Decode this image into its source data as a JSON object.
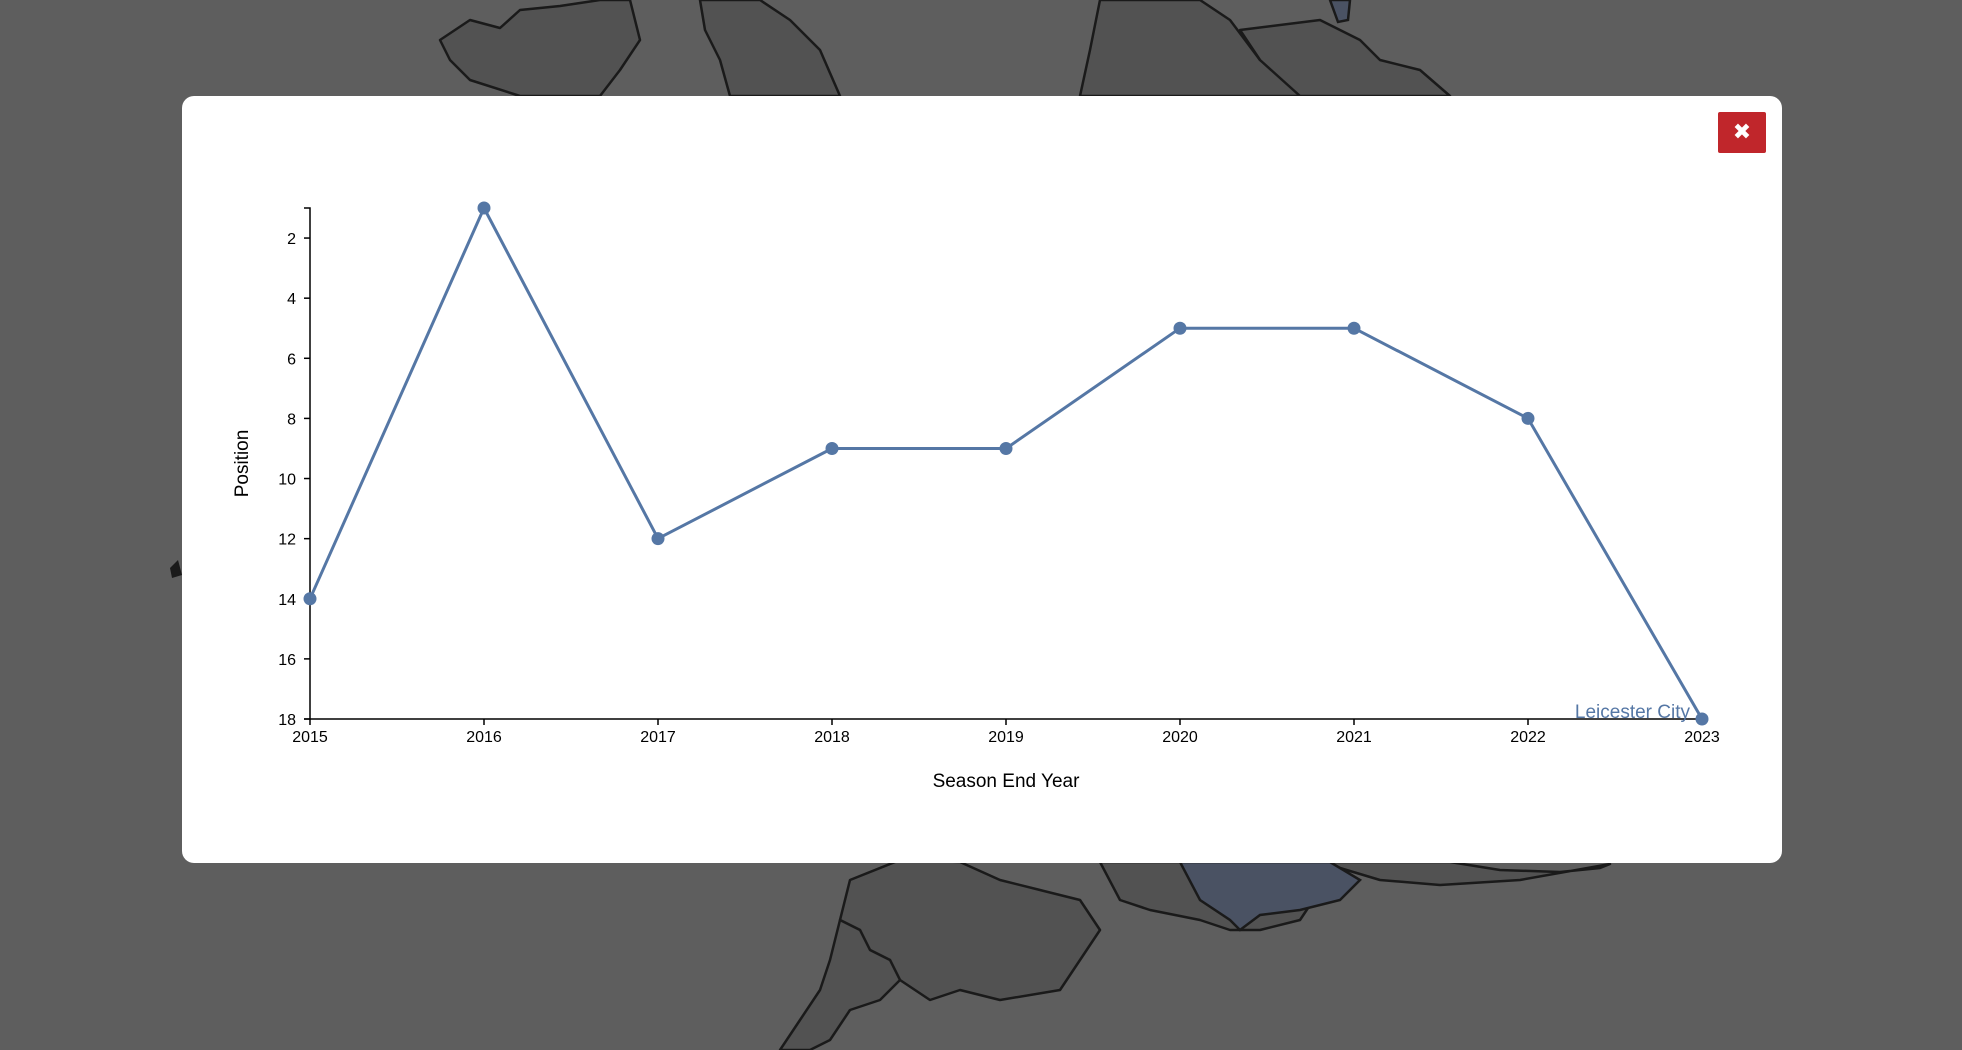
{
  "modal": {
    "close_icon": "close-x-icon",
    "close_glyph": "✖"
  },
  "colors": {
    "backdrop": "#5e5e5e",
    "map_regions": "#525252",
    "map_highlight": "#4a5263",
    "map_outline": "#1a1a1a",
    "close_button": "#c0262b",
    "series_line": "#5577a5",
    "axis": "#000000"
  },
  "chart_data": {
    "type": "line",
    "title": "",
    "xlabel": "Season End Year",
    "ylabel": "Position",
    "x": [
      2015,
      2016,
      2017,
      2018,
      2019,
      2020,
      2021,
      2022,
      2023
    ],
    "series": [
      {
        "name": "Leicester City",
        "values": [
          14,
          1,
          12,
          9,
          9,
          5,
          5,
          8,
          18
        ]
      }
    ],
    "xlim": [
      2015,
      2023
    ],
    "ylim": [
      1,
      18
    ],
    "y_inverted": true,
    "x_ticks": [
      "2015",
      "2016",
      "2017",
      "2018",
      "2019",
      "2020",
      "2021",
      "2022",
      "2023"
    ],
    "y_ticks": [
      "2",
      "4",
      "6",
      "8",
      "10",
      "12",
      "14",
      "16",
      "18"
    ],
    "grid": false,
    "legend": "none"
  }
}
